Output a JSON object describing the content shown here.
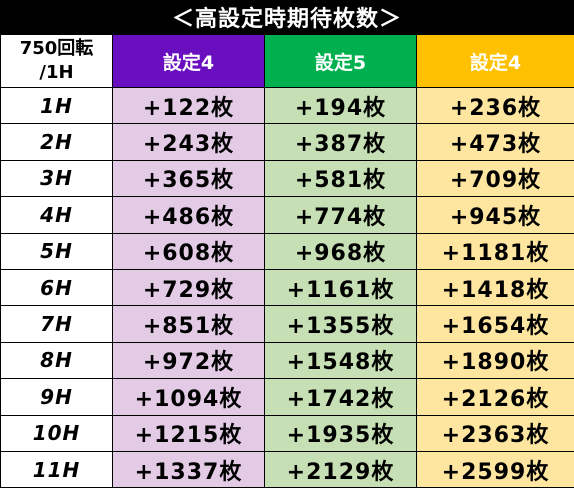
{
  "title": "＜高設定時期待枚数＞",
  "header": {
    "corner_line1": "750回転",
    "corner_line2": "/1H",
    "col1": "設定4",
    "col2": "設定5",
    "col3": "設定4"
  },
  "colors": {
    "col1_header": "#6a0fbf",
    "col2_header": "#00b04f",
    "col3_header": "#ffc000",
    "col1_cell": "#e3cbe6",
    "col2_cell": "#c6dfb4",
    "col3_cell": "#fee6a0"
  },
  "rows": [
    {
      "hour": "1H",
      "v1": "+122枚",
      "v2": "+194枚",
      "v3": "+236枚"
    },
    {
      "hour": "2H",
      "v1": "+243枚",
      "v2": "+387枚",
      "v3": "+473枚"
    },
    {
      "hour": "3H",
      "v1": "+365枚",
      "v2": "+581枚",
      "v3": "+709枚"
    },
    {
      "hour": "4H",
      "v1": "+486枚",
      "v2": "+774枚",
      "v3": "+945枚"
    },
    {
      "hour": "5H",
      "v1": "+608枚",
      "v2": "+968枚",
      "v3": "+1181枚"
    },
    {
      "hour": "6H",
      "v1": "+729枚",
      "v2": "+1161枚",
      "v3": "+1418枚"
    },
    {
      "hour": "7H",
      "v1": "+851枚",
      "v2": "+1355枚",
      "v3": "+1654枚"
    },
    {
      "hour": "8H",
      "v1": "+972枚",
      "v2": "+1548枚",
      "v3": "+1890枚"
    },
    {
      "hour": "9H",
      "v1": "+1094枚",
      "v2": "+1742枚",
      "v3": "+2126枚"
    },
    {
      "hour": "10H",
      "v1": "+1215枚",
      "v2": "+1935枚",
      "v3": "+2363枚"
    },
    {
      "hour": "11H",
      "v1": "+1337枚",
      "v2": "+2129枚",
      "v3": "+2599枚"
    }
  ]
}
